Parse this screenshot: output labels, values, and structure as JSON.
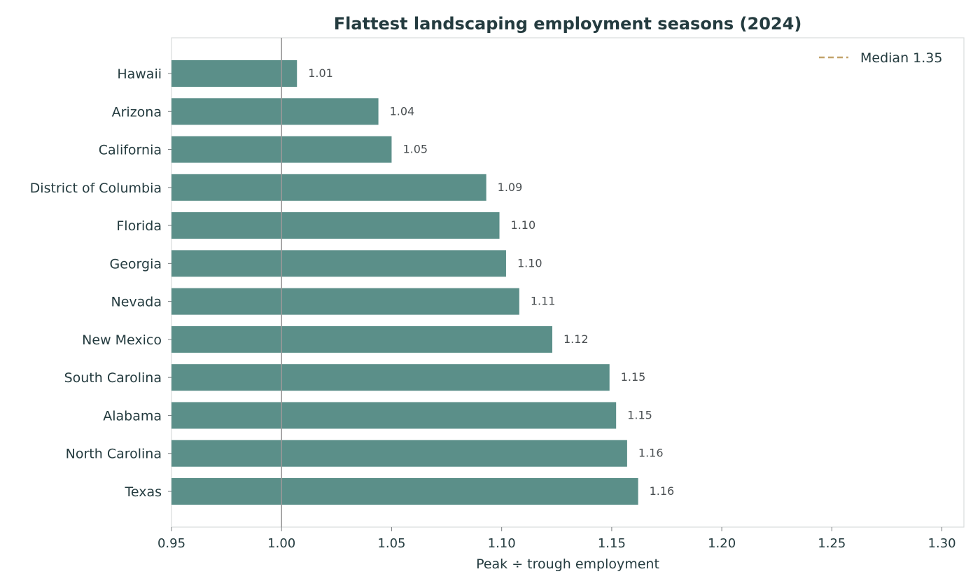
{
  "chart_data": {
    "type": "bar",
    "orientation": "horizontal",
    "title": "Flattest landscaping employment seasons (2024)",
    "xlabel": "Peak ÷ trough employment",
    "ylabel": "",
    "categories": [
      "Hawaii",
      "Arizona",
      "California",
      "District of Columbia",
      "Florida",
      "Georgia",
      "Nevada",
      "New Mexico",
      "South Carolina",
      "Alabama",
      "North Carolina",
      "Texas"
    ],
    "values": [
      1.007,
      1.044,
      1.05,
      1.093,
      1.099,
      1.102,
      1.108,
      1.123,
      1.149,
      1.152,
      1.157,
      1.162
    ],
    "data_labels": [
      "1.01",
      "1.04",
      "1.05",
      "1.09",
      "1.10",
      "1.10",
      "1.11",
      "1.12",
      "1.15",
      "1.15",
      "1.16",
      "1.16"
    ],
    "xlim": [
      0.95,
      1.31
    ],
    "xticks": [
      0.95,
      1.0,
      1.05,
      1.1,
      1.15,
      1.2,
      1.25,
      1.3
    ],
    "xtick_labels": [
      "0.95",
      "1.00",
      "1.05",
      "1.10",
      "1.15",
      "1.20",
      "1.25",
      "1.30"
    ],
    "reference_line": {
      "x": 1.0
    },
    "median": {
      "value": 1.35,
      "label": "Median 1.35"
    },
    "legend_position": "top-right",
    "grid": false,
    "colors": {
      "bar": "#5b8f89",
      "median": "#c2a36b",
      "reference": "#999999",
      "frame": "#d9dcdd",
      "text": "#243b3f"
    }
  }
}
